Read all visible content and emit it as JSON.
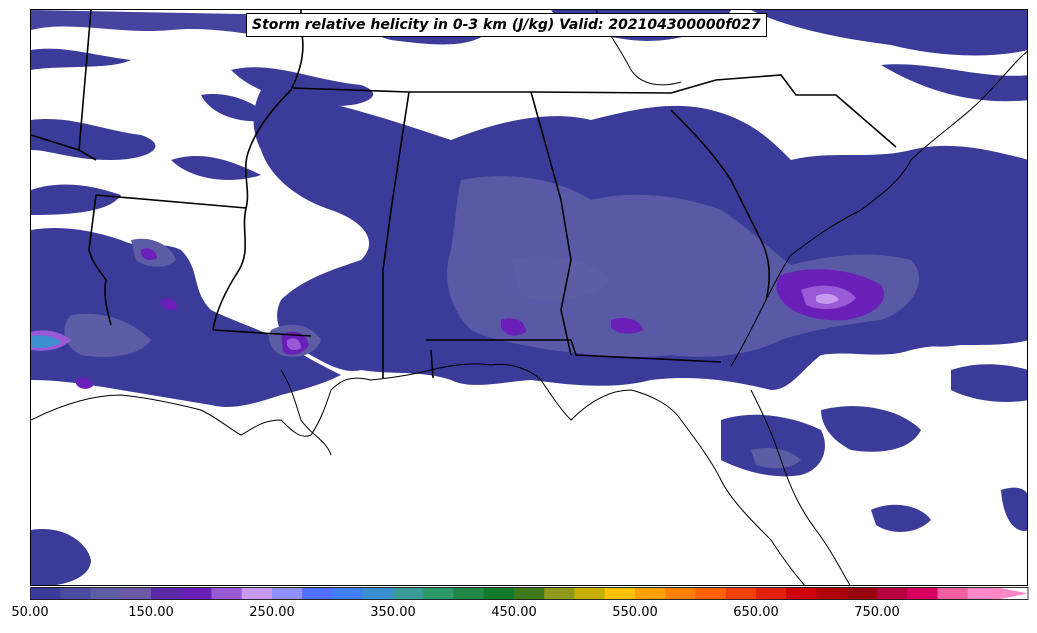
{
  "title": "Storm relative helicity in 0-3 km (J/kg) Valid: 202104300000f027",
  "colorbar": {
    "tick_labels": [
      "50.00",
      "150.00",
      "250.00",
      "350.00",
      "450.00",
      "550.00",
      "650.00",
      "750.00"
    ],
    "tick_values": [
      50,
      150,
      250,
      350,
      450,
      550,
      650,
      750
    ],
    "min": 50,
    "max": 850,
    "colors": [
      "#3b3b9a",
      "#4a4a9e",
      "#5d5da6",
      "#6a5aa8",
      "#5a2aa8",
      "#6a1fb8",
      "#9a5ad8",
      "#c79af0",
      "#8f8fff",
      "#4f6fff",
      "#3f7fef",
      "#3b8fd0",
      "#3a9a98",
      "#2e9a6a",
      "#22884a",
      "#137a2a",
      "#3f7a1a",
      "#8f9a1a",
      "#c8b000",
      "#ffc000",
      "#ffa000",
      "#ff8000",
      "#ff6000",
      "#f04000",
      "#e02000",
      "#d00000",
      "#b00000",
      "#980010",
      "#b80040",
      "#d80060",
      "#f060a0",
      "#ff88c8"
    ],
    "extend": "max"
  },
  "map": {
    "field": "Storm relative helicity",
    "levels_shown": [
      "50-75 (dark blue)",
      "75-125 (slate purple)",
      "125-200 (violet)",
      "200-300 (light purple/blue)"
    ],
    "region": "Southeastern United States"
  }
}
